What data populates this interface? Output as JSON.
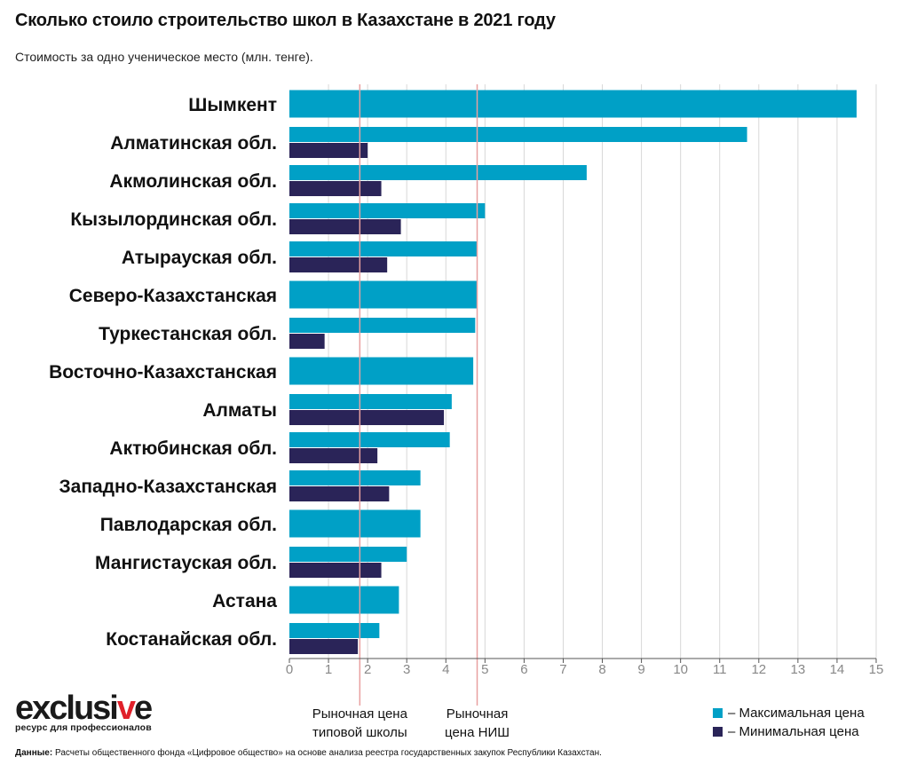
{
  "title": "Сколько стоило строительство школ в Казахстане в 2021 году",
  "subtitle": "Стоимость за одно ученическое место (млн. тенге).",
  "colors": {
    "max": "#00a0c6",
    "min": "#2a2458",
    "ref_line": "#e8a0a0",
    "grid": "#d8d8d8",
    "axis": "#555555"
  },
  "chart_data": {
    "type": "bar",
    "orientation": "horizontal",
    "categories": [
      "Шымкент",
      "Алматинская обл.",
      "Акмолинская обл.",
      "Кызылординская обл.",
      "Атырауская обл.",
      "Северо-Казахстанская",
      "Туркестанская обл.",
      "Восточно-Казахстанская",
      "Алматы",
      "Актюбинская обл.",
      "Западно-Казахстанская",
      "Павлодарская обл.",
      "Мангистауская обл.",
      "Астана",
      "Костанайская обл."
    ],
    "series": [
      {
        "name": "– Максимальная цена",
        "key": "max",
        "values": [
          14.5,
          11.7,
          7.6,
          5.0,
          4.8,
          4.8,
          4.75,
          4.7,
          4.15,
          4.1,
          3.35,
          3.35,
          3.0,
          2.8,
          2.3
        ]
      },
      {
        "name": "– Минимальная цена",
        "key": "min",
        "values": [
          null,
          2.0,
          2.35,
          2.85,
          2.5,
          null,
          0.9,
          null,
          3.95,
          2.25,
          2.55,
          null,
          2.35,
          null,
          1.75
        ]
      }
    ],
    "xlim": [
      0,
      15
    ],
    "xticks": [
      0,
      1,
      2,
      3,
      4,
      5,
      6,
      7,
      8,
      9,
      10,
      11,
      12,
      13,
      14,
      15
    ],
    "reference_lines": [
      {
        "value": 1.8,
        "label_line1": "Рыночная цена",
        "label_line2": "типовой школы"
      },
      {
        "value": 4.8,
        "label_line1": "Рыночная",
        "label_line2": "цена НИШ"
      }
    ],
    "legend_position": "bottom-right",
    "grid": true
  },
  "logo": {
    "text_main_a": "exclusi",
    "text_main_accent": "v",
    "text_main_b": "e",
    "tagline": "ресурс для профессионалов"
  },
  "source": {
    "label": "Данные:",
    "text": " Расчеты общественного фонда «Цифровое общество» на основе анализа реестра государственных закупок Республики Казахстан."
  }
}
